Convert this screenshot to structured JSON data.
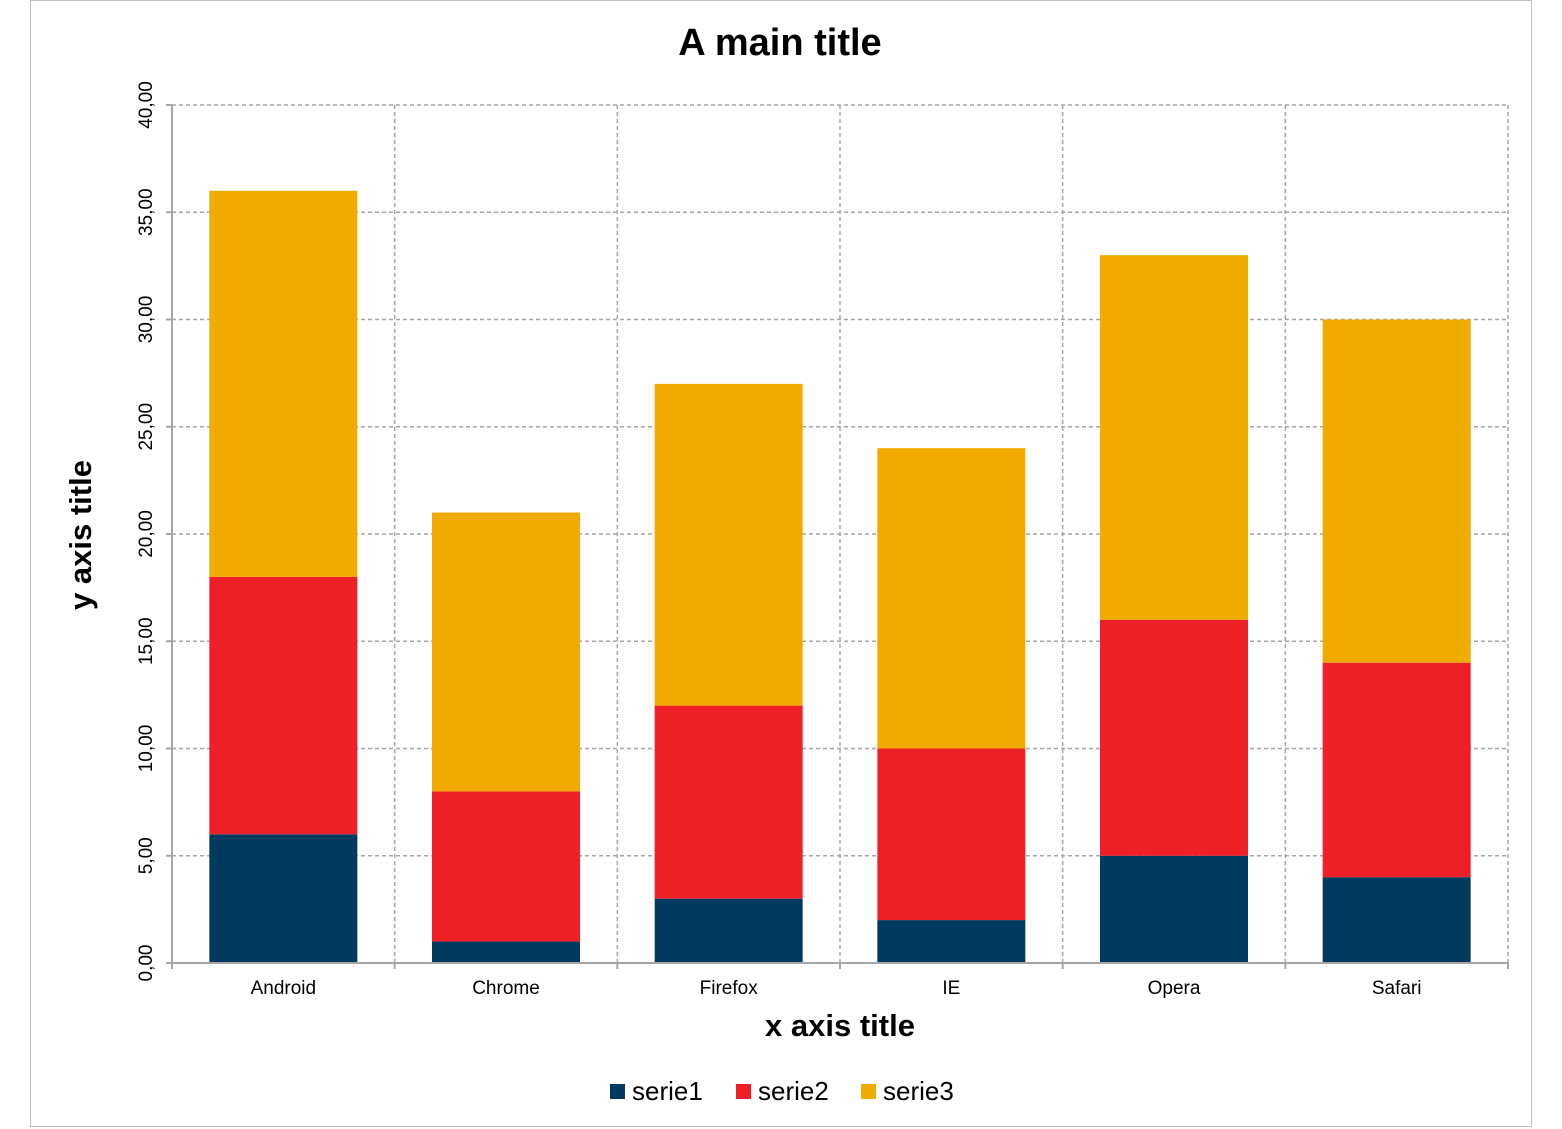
{
  "chart_data": {
    "type": "bar",
    "stacked": true,
    "title": "A main title",
    "xlabel": "x axis title",
    "ylabel": "y axis title",
    "categories": [
      "Android",
      "Chrome",
      "Firefox",
      "IE",
      "Opera",
      "Safari"
    ],
    "series": [
      {
        "name": "serie1",
        "color": "#003b5f",
        "values": [
          6,
          1,
          3,
          2,
          5,
          4
        ]
      },
      {
        "name": "serie2",
        "color": "#ef1f28",
        "values": [
          12,
          7,
          9,
          8,
          11,
          10
        ]
      },
      {
        "name": "serie3",
        "color": "#f0aa00",
        "values": [
          18,
          13,
          15,
          14,
          17,
          16
        ]
      }
    ],
    "ylim": [
      0,
      40
    ],
    "yticks": [
      0,
      5,
      10,
      15,
      20,
      25,
      30,
      35,
      40
    ],
    "ytick_labels": [
      "0,00",
      "5,00",
      "10,00",
      "15,00",
      "20,00",
      "25,00",
      "30,00",
      "35,00",
      "40,00"
    ],
    "grid": true,
    "legend": "bottom"
  }
}
